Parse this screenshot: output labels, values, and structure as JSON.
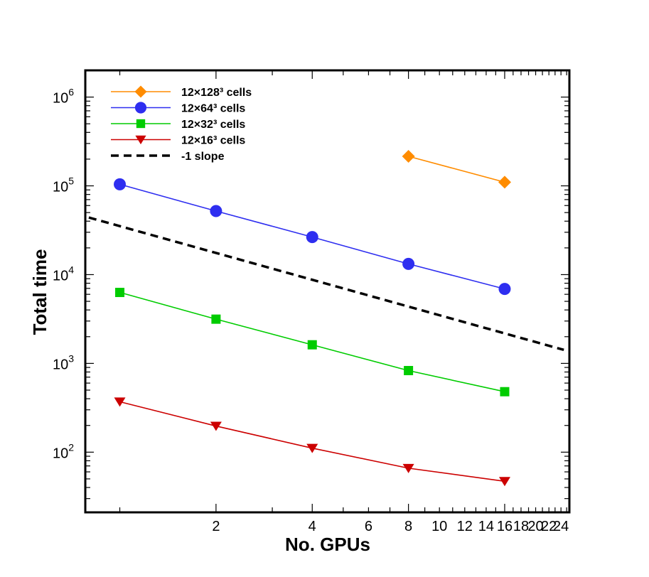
{
  "chart_data": {
    "type": "line",
    "title": "",
    "xlabel": "No. GPUs",
    "ylabel": "Total time",
    "xscale": "log",
    "yscale": "log",
    "xlim": [
      0.78,
      25.5
    ],
    "ylim": [
      21,
      2000000
    ],
    "legend_position": "top-left",
    "x_tick_labels": [
      "2",
      "4",
      "6",
      "8",
      "10",
      "12",
      "14",
      "16",
      "18",
      "20",
      "22",
      "24"
    ],
    "y_tick_labels": [
      {
        "base": "10",
        "exp": "2",
        "value": 100
      },
      {
        "base": "10",
        "exp": "3",
        "value": 1000
      },
      {
        "base": "10",
        "exp": "4",
        "value": 10000
      },
      {
        "base": "10",
        "exp": "5",
        "value": 100000
      },
      {
        "base": "10",
        "exp": "6",
        "value": 1000000
      }
    ],
    "series": [
      {
        "name": "12×128³ cells",
        "color": "#ff8c00",
        "marker": "diamond",
        "x": [
          8,
          16
        ],
        "values": [
          215000,
          110000
        ]
      },
      {
        "name": "12×64³ cells",
        "color": "#2e2ef0",
        "marker": "circle",
        "x": [
          1,
          2,
          4,
          8,
          16
        ],
        "values": [
          104000,
          52000,
          26500,
          13200,
          6900
        ]
      },
      {
        "name": "12×32³ cells",
        "color": "#00cc00",
        "marker": "square",
        "x": [
          1,
          2,
          4,
          8,
          16
        ],
        "values": [
          6300,
          3150,
          1620,
          830,
          480
        ]
      },
      {
        "name": "12×16³ cells",
        "color": "#cc0000",
        "marker": "triangle-down",
        "x": [
          1,
          2,
          4,
          8,
          16
        ],
        "values": [
          370,
          197,
          111,
          66,
          47
        ]
      },
      {
        "name": "-1 slope",
        "color": "#000000",
        "marker": "none",
        "dashed": true,
        "x": [
          0.8,
          24.5
        ],
        "values": [
          44000,
          1420
        ]
      }
    ]
  }
}
